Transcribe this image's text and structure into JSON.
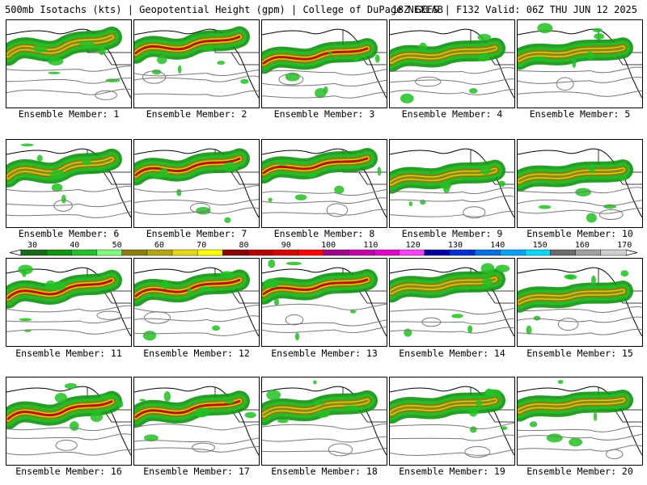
{
  "header": {
    "left_text": "500mb Isotachs (kts) | Geopotential Height (gpm) | College of DuPage NEXLAB",
    "right_text": "18Z GEFS | F132 Valid: 06Z THU JUN 12 2025"
  },
  "colorbar": {
    "labels": [
      "30",
      "40",
      "50",
      "60",
      "70",
      "80",
      "90",
      "100",
      "110",
      "120",
      "130",
      "140",
      "150",
      "160",
      "170"
    ],
    "colors": [
      "#1a6a1a",
      "#119411",
      "#25c025",
      "#7fff7f",
      "#8a7e10",
      "#b3a612",
      "#e6d618",
      "#ffff00",
      "#8b0000",
      "#b40000",
      "#d60000",
      "#ff0000",
      "#a0008a",
      "#c300a8",
      "#e000c8",
      "#ff44ff",
      "#0000a0",
      "#0030d0",
      "#0070e6",
      "#00a0ff",
      "#00d8ff",
      "#6a6a6a",
      "#a0a0a0",
      "#d0d0d0"
    ]
  },
  "panels": [
    {
      "caption": "Ensemble Member: 1"
    },
    {
      "caption": "Ensemble Member: 2"
    },
    {
      "caption": "Ensemble Member: 3"
    },
    {
      "caption": "Ensemble Member: 4"
    },
    {
      "caption": "Ensemble Member: 5"
    },
    {
      "caption": "Ensemble Member: 6"
    },
    {
      "caption": "Ensemble Member: 7"
    },
    {
      "caption": "Ensemble Member: 8"
    },
    {
      "caption": "Ensemble Member: 9"
    },
    {
      "caption": "Ensemble Member: 10"
    },
    {
      "caption": "Ensemble Member: 11"
    },
    {
      "caption": "Ensemble Member: 12"
    },
    {
      "caption": "Ensemble Member: 13"
    },
    {
      "caption": "Ensemble Member: 14"
    },
    {
      "caption": "Ensemble Member: 15"
    },
    {
      "caption": "Ensemble Member: 16"
    },
    {
      "caption": "Ensemble Member: 17"
    },
    {
      "caption": "Ensemble Member: 18"
    },
    {
      "caption": "Ensemble Member: 19"
    },
    {
      "caption": "Ensemble Member: 20"
    }
  ]
}
